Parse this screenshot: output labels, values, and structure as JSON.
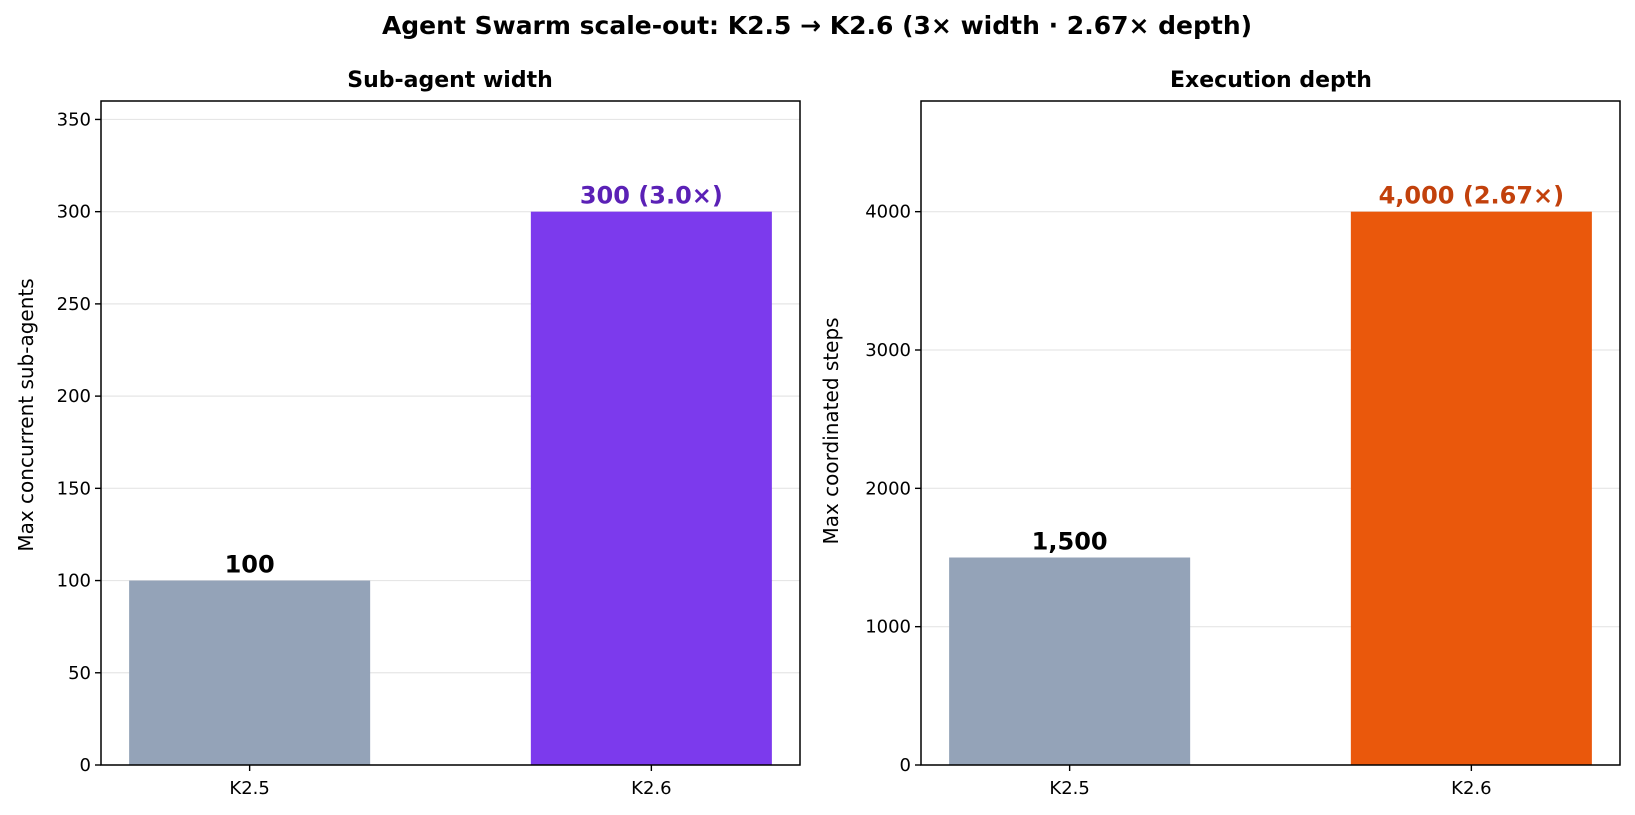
{
  "figure": {
    "title": "Agent Swarm scale-out: K2.5 → K2.6 (3× width · 2.67× depth)"
  },
  "chart_data": [
    {
      "type": "bar",
      "title": "Sub-agent width",
      "xlabel": "",
      "ylabel": "Max concurrent sub-agents",
      "categories": [
        "K2.5",
        "K2.6"
      ],
      "values": [
        100,
        300
      ],
      "bar_colors": [
        "#94a3b8",
        "#7c3aed"
      ],
      "data_labels": [
        "100",
        "300  (3.0×)"
      ],
      "data_label_colors": [
        "#000000",
        "#5b21b6"
      ],
      "ylim": [
        0,
        360
      ],
      "yticks": [
        0,
        50,
        100,
        150,
        200,
        250,
        300,
        350
      ],
      "ytick_labels": [
        "0",
        "50",
        "100",
        "150",
        "200",
        "250",
        "300",
        "350"
      ],
      "grid": true
    },
    {
      "type": "bar",
      "title": "Execution depth",
      "xlabel": "",
      "ylabel": "Max coordinated steps",
      "categories": [
        "K2.5",
        "K2.6"
      ],
      "values": [
        1500,
        4000
      ],
      "bar_colors": [
        "#94a3b8",
        "#ea580c"
      ],
      "data_labels": [
        "1,500",
        "4,000  (2.67×)"
      ],
      "data_label_colors": [
        "#000000",
        "#c2410c"
      ],
      "ylim": [
        0,
        4800
      ],
      "yticks": [
        0,
        1000,
        2000,
        3000,
        4000
      ],
      "ytick_labels": [
        "0",
        "1000",
        "2000",
        "3000",
        "4000"
      ],
      "grid": true
    }
  ]
}
